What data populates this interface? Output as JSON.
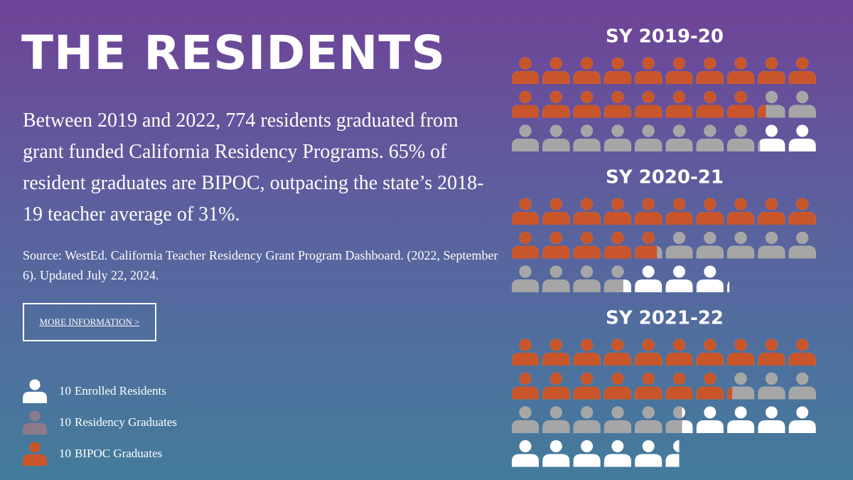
{
  "title": "THE RESIDENTS",
  "description": "Between 2019 and 2022, 774 residents graduated from grant funded California Residency Programs. 65% of resident graduates are BIPOC, outpacing the state’s 2018-19 teacher average of  31%.",
  "source": "Source: WestEd. California Teacher Residency Grant Program Dashboard. (2022, September 6). Updated July 22, 2024.",
  "button": "MORE INFORMATION >",
  "chart_data": {
    "type": "pictogram",
    "unit": 10,
    "categories": [
      "SY 2019-20",
      "SY 2020-21",
      "SY 2021-22"
    ],
    "series": [
      {
        "name": "Enrolled Residents",
        "color": "#ffffff",
        "values": [
          300,
          271,
          355
        ]
      },
      {
        "name": "Residency Graduates",
        "color": "#a6a6a6",
        "values": [
          281,
          237,
          256
        ]
      },
      {
        "name": "BIPOC Graduates",
        "color": "#c9562a",
        "values": [
          183,
          148,
          172
        ]
      }
    ]
  }
}
